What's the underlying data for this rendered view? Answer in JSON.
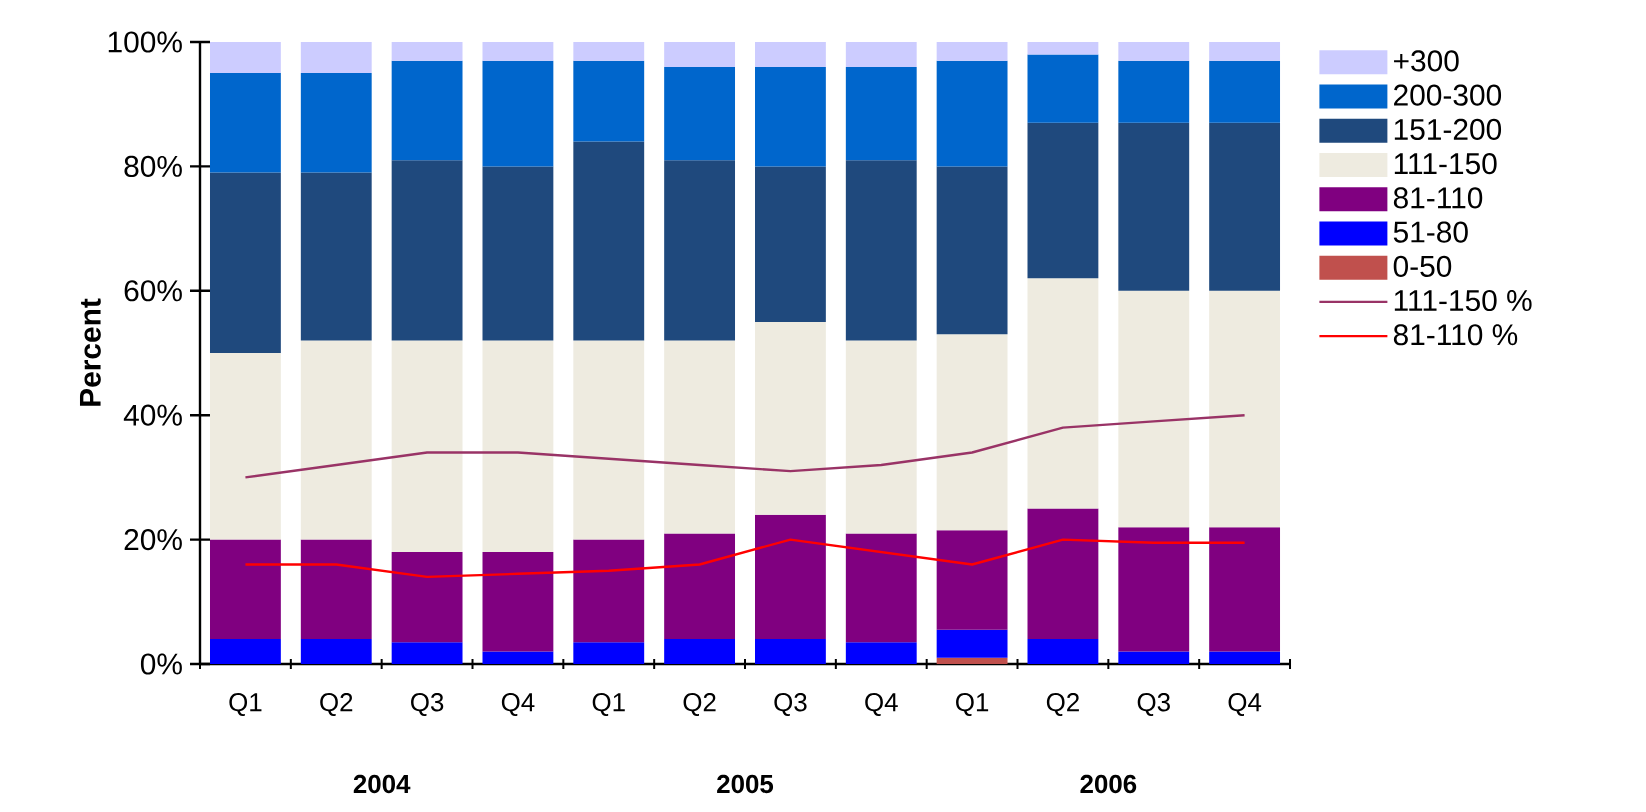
{
  "chart_data": {
    "type": "bar",
    "stacked": true,
    "ylabel": "Percent",
    "categories": [
      "Q1",
      "Q2",
      "Q3",
      "Q4",
      "Q1",
      "Q2",
      "Q3",
      "Q4",
      "Q1",
      "Q2",
      "Q3",
      "Q4"
    ],
    "annotations": [
      "2004",
      "2005",
      "2006"
    ],
    "ylim": [
      0,
      100
    ],
    "yticks": [
      {
        "value": 0,
        "label": "0%"
      },
      {
        "value": 20,
        "label": "20%"
      },
      {
        "value": 40,
        "label": "40%"
      },
      {
        "value": 60,
        "label": "60%"
      },
      {
        "value": 80,
        "label": "80%"
      },
      {
        "value": 100,
        "label": "100%"
      }
    ],
    "legend": "right",
    "series": [
      {
        "name": "0-50",
        "color": "#c0504d",
        "values": [
          0,
          0,
          0,
          0,
          0,
          0,
          0,
          0,
          1,
          0,
          0,
          0
        ]
      },
      {
        "name": "51-80",
        "color": "#0000ff",
        "values": [
          4,
          4,
          3.5,
          2,
          3.5,
          4,
          4,
          3.5,
          4.5,
          4,
          2,
          2
        ]
      },
      {
        "name": "81-110",
        "color": "#800080",
        "values": [
          16,
          16,
          14.5,
          16,
          16.5,
          17,
          20,
          17.5,
          16,
          21,
          20,
          20
        ]
      },
      {
        "name": "111-150",
        "color": "#eeebe0",
        "values": [
          30,
          32,
          34,
          34,
          32,
          31,
          31,
          31,
          31.5,
          37,
          38,
          38
        ]
      },
      {
        "name": "151-200",
        "color": "#1f497d",
        "values": [
          29,
          27,
          29,
          28,
          32,
          29,
          25,
          29,
          27,
          25,
          27,
          27
        ]
      },
      {
        "name": "200-300",
        "color": "#0066cc",
        "values": [
          16,
          16,
          16,
          17,
          13,
          15,
          16,
          15,
          17,
          11,
          10,
          10
        ]
      },
      {
        "name": "+300",
        "color": "#ccccff",
        "values": [
          5,
          5,
          3,
          3,
          3,
          4,
          4,
          4,
          3,
          2,
          3,
          3
        ]
      },
      {
        "name": "111-150 %",
        "type": "line",
        "color": "#993366",
        "values": [
          30,
          32,
          34,
          34,
          33,
          32,
          31,
          32,
          34,
          38,
          39,
          40
        ]
      },
      {
        "name": "81-110 %",
        "type": "line",
        "color": "#ff0000",
        "values": [
          16,
          16,
          14,
          14.5,
          15,
          16,
          20,
          18,
          16,
          20,
          19.5,
          19.5
        ]
      }
    ]
  }
}
